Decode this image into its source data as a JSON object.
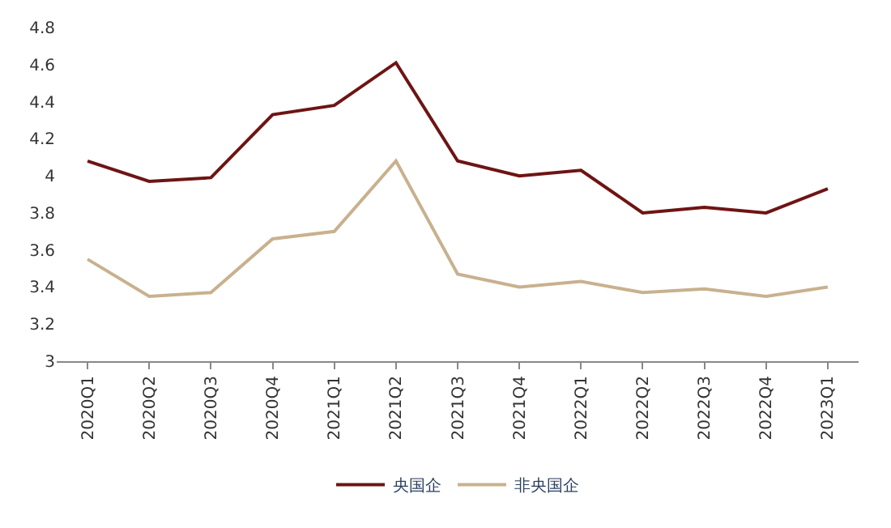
{
  "chart_data": {
    "type": "line",
    "categories": [
      "2020Q1",
      "2020Q2",
      "2020Q3",
      "2020Q4",
      "2021Q1",
      "2021Q2",
      "2021Q3",
      "2021Q4",
      "2022Q1",
      "2022Q2",
      "2022Q3",
      "2022Q4",
      "2023Q1"
    ],
    "series": [
      {
        "name": "央国企",
        "color": "#6e1414",
        "values": [
          4.08,
          3.97,
          3.99,
          4.33,
          4.38,
          4.61,
          4.08,
          4.0,
          4.03,
          3.8,
          3.83,
          3.8,
          3.93
        ]
      },
      {
        "name": "非央国企",
        "color": "#c8b18e",
        "values": [
          3.55,
          3.35,
          3.37,
          3.66,
          3.7,
          4.08,
          3.47,
          3.4,
          3.43,
          3.37,
          3.39,
          3.35,
          3.4
        ]
      }
    ],
    "ylim": [
      3,
      4.8
    ],
    "yticks": [
      3,
      3.2,
      3.4,
      3.6,
      3.8,
      4,
      4.2,
      4.4,
      4.6,
      4.8
    ],
    "legend": "bottom",
    "marker": "none",
    "line_style": "solid"
  }
}
